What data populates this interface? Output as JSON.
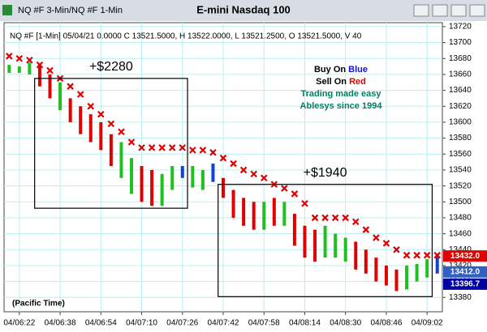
{
  "window": {
    "tab": "NQ #F 3-Min/NQ #F 1-Min"
  },
  "chart_data": {
    "type": "range-bar",
    "title": "E-mini Nasdaq 100",
    "info": "NQ #F [1-Min] 05/04/21  0.0000  C 13521.5000, H 13522.0000, L 13521.2500, O 13521.5000, V 40",
    "legend_lines": [
      {
        "text": "Buy On ",
        "highlight": "Blue",
        "color": "#000000",
        "highlight_color": "#1010e0"
      },
      {
        "text": "Sell On ",
        "highlight": "Red",
        "color": "#000000",
        "highlight_color": "#e00000"
      },
      {
        "text": "Trading made easy",
        "color": "#008060"
      },
      {
        "text": "Ablesys since 1994",
        "color": "#008060"
      }
    ],
    "timezone_note": "(Pacific Time)",
    "categories": [
      null,
      "04/06:22",
      null,
      null,
      null,
      "04/06:38",
      null,
      null,
      null,
      "04/06:54",
      null,
      null,
      null,
      "04/07:10",
      null,
      null,
      null,
      "04/07:26",
      null,
      null,
      null,
      "04/07:42",
      null,
      null,
      null,
      "04/07:58",
      null,
      null,
      null,
      "04/08:14",
      null,
      null,
      null,
      "04/08:30",
      null,
      null,
      null,
      "04/08:46",
      null,
      null,
      null,
      "04/09:02",
      null
    ],
    "high": [
      13672,
      13670,
      13675,
      13672,
      13660,
      13650,
      13630,
      13620,
      13610,
      13600,
      13585,
      13575,
      13555,
      13545,
      13540,
      13535,
      13545,
      13545,
      13545,
      13540,
      13548,
      13530,
      13515,
      13505,
      13500,
      13500,
      13505,
      13500,
      13485,
      13470,
      13465,
      13470,
      13460,
      13455,
      13450,
      13440,
      13430,
      13420,
      13415,
      13420,
      13422,
      13428,
      13435
    ],
    "low": [
      13662,
      13662,
      13660,
      13645,
      13630,
      13615,
      13600,
      13585,
      13575,
      13565,
      13545,
      13530,
      13510,
      13500,
      13495,
      13495,
      13515,
      13530,
      13518,
      13515,
      13525,
      13505,
      13480,
      13470,
      13465,
      13465,
      13470,
      13470,
      13445,
      13430,
      13425,
      13430,
      13430,
      13425,
      13415,
      13410,
      13400,
      13395,
      13388,
      13390,
      13400,
      13405,
      13410
    ],
    "bar_colors": [
      "#20c020",
      "#20c020",
      "#20c020",
      "#e00000",
      "#e00000",
      "#20c020",
      "#e00000",
      "#e00000",
      "#e00000",
      "#e00000",
      "#e00000",
      "#20c020",
      "#20c020",
      "#e00000",
      "#e00000",
      "#20c020",
      "#20c020",
      "#1040e0",
      "#20c020",
      "#20c020",
      "#1040e0",
      "#e00000",
      "#e00000",
      "#e00000",
      "#e00000",
      "#20c020",
      "#e00000",
      "#20c020",
      "#e00000",
      "#e00000",
      "#e00000",
      "#20c020",
      "#20c020",
      "#20c020",
      "#e00000",
      "#e00000",
      "#e00000",
      "#e00000",
      "#e00000",
      "#20c020",
      "#20c020",
      "#20c020",
      "#1040e0"
    ],
    "stops": {
      "color": "#e00000",
      "values": [
        13683,
        13680,
        13678,
        13672,
        13665,
        13655,
        13645,
        13635,
        13620,
        13610,
        13598,
        13588,
        13575,
        13568,
        13568,
        13568,
        13568,
        13568,
        13565,
        13565,
        13562,
        13555,
        13548,
        13540,
        13535,
        13530,
        13522,
        13517,
        13510,
        13498,
        13480,
        13480,
        13480,
        13480,
        13475,
        13465,
        13455,
        13448,
        13440,
        13433,
        13433,
        13433,
        13433
      ]
    },
    "trades": [
      {
        "label": "+$2280",
        "start": 3,
        "end": 17,
        "top": 13655,
        "bottom": 13492
      },
      {
        "label": "+$1940",
        "start": 21,
        "end": 41,
        "top": 13522,
        "bottom": 13381
      }
    ],
    "price_flags": [
      {
        "value": 13432.0,
        "label": "13432.0",
        "color": "#e00000"
      },
      {
        "value": 13412.0,
        "label": "13412.0",
        "color": "#3060c0"
      },
      {
        "value": 13396.7,
        "label": "13396.7",
        "color": "#0000a0"
      }
    ],
    "ylim": [
      13362,
      13725
    ],
    "yticks": [
      13380,
      13400,
      13420,
      13440,
      13460,
      13480,
      13500,
      13520,
      13540,
      13560,
      13580,
      13600,
      13620,
      13640,
      13660,
      13680,
      13700,
      13720
    ],
    "grid": true
  }
}
